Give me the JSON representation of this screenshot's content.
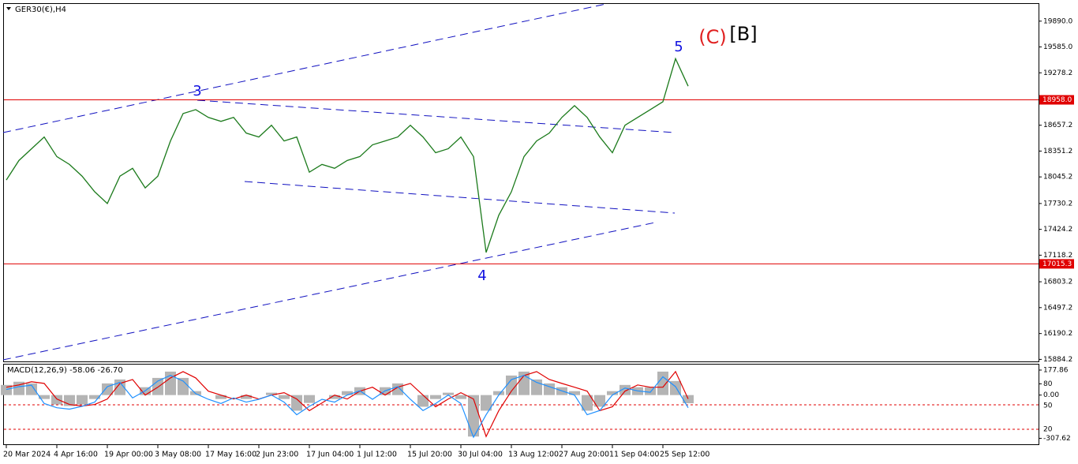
{
  "chart_data": [
    {
      "type": "line",
      "title": "GER30(€),H4",
      "categories": [
        "20 Mar 2024",
        null,
        null,
        null,
        "4 Apr 16:00",
        null,
        null,
        null,
        "19 Apr 00:00",
        null,
        null,
        null,
        "3 May 08:00",
        null,
        null,
        null,
        "17 May 16:00",
        null,
        null,
        null,
        "2 Jun 23:00",
        null,
        null,
        null,
        "17 Jun 04:00",
        null,
        null,
        null,
        "1 Jul 12:00",
        null,
        null,
        null,
        "15 Jul 20:00",
        null,
        null,
        null,
        "30 Jul 04:00",
        null,
        null,
        null,
        "13 Aug 12:00",
        null,
        null,
        null,
        "27 Aug 20:00",
        null,
        null,
        null,
        "11 Sep 04:00",
        null,
        null,
        null,
        "25 Sep 12:00",
        null,
        null
      ],
      "series": [
        {
          "color": "#1b7a1b",
          "values": [
            18008,
            18240,
            18379,
            18518,
            18286,
            18193,
            18054,
            17869,
            17730,
            18054,
            18147,
            17915,
            18054,
            18471,
            18796,
            18842,
            18750,
            18703,
            18750,
            18564,
            18518,
            18657,
            18471,
            18518,
            18101,
            18193,
            18147,
            18240,
            18286,
            18425,
            18471,
            18518,
            18657,
            18518,
            18332,
            18379,
            18518,
            18286,
            17150,
            17591,
            17869,
            18286,
            18471,
            18564,
            18750,
            18889,
            18750,
            18518,
            18332,
            18657,
            18750,
            18842,
            18935,
            19445,
            19120
          ]
        }
      ],
      "ylim": [
        15860,
        20103
      ],
      "yticks": [
        {
          "value": 19890,
          "label": "19890.0"
        },
        {
          "value": 19585,
          "label": "19585.0"
        },
        19278.2,
        18657.2,
        18351.2,
        18045.2,
        17730.2,
        17424.2,
        17118.2,
        16803.2,
        16497.2,
        16190.2,
        15884.2
      ],
      "hlines": [
        {
          "value": 18958,
          "label": "18958.0",
          "color": "#e00000"
        },
        {
          "value": 17015.3,
          "label": "17015.3",
          "color": "#e00000"
        }
      ],
      "annotations": [
        {
          "text": "3",
          "color": "#1010e0"
        },
        {
          "text": "4",
          "color": "#1010e0"
        },
        {
          "text": "5",
          "color": "#1010e0"
        },
        {
          "text": "(C)",
          "color": "#e02020"
        },
        {
          "text": "[B]",
          "color": "#000000"
        }
      ]
    },
    {
      "type": "macd",
      "title": "MACD(12,26,9) -58.06 -26.70",
      "series": [
        {
          "type": "bar",
          "color": "#b4b4b4",
          "values": [
            72,
            95,
            83,
            -28,
            -67,
            -78,
            -67,
            -28,
            83,
            111,
            0,
            56,
            122,
            167,
            122,
            28,
            0,
            -28,
            0,
            -28,
            0,
            17,
            -28,
            -111,
            -56,
            0,
            -28,
            28,
            56,
            0,
            56,
            83,
            0,
            -83,
            -28,
            17,
            -28,
            -295,
            -111,
            28,
            139,
            167,
            111,
            83,
            56,
            28,
            -111,
            -83,
            28,
            72,
            56,
            56,
            167,
            100,
            -58
          ]
        },
        {
          "type": "line",
          "color": "#e00000",
          "values": [
            56,
            72,
            95,
            83,
            -28,
            -67,
            -78,
            -67,
            -28,
            83,
            111,
            0,
            56,
            122,
            167,
            122,
            28,
            0,
            -28,
            0,
            -28,
            0,
            17,
            -28,
            -111,
            -56,
            0,
            -28,
            28,
            56,
            0,
            56,
            83,
            0,
            -83,
            -28,
            17,
            -28,
            -295,
            -111,
            28,
            139,
            167,
            111,
            83,
            56,
            28,
            -111,
            -83,
            28,
            72,
            56,
            56,
            167,
            -27
          ]
        },
        {
          "type": "line",
          "color": "#1e90ff",
          "values": [
            40,
            60,
            70,
            -60,
            -90,
            -100,
            -80,
            -50,
            60,
            90,
            -20,
            30,
            100,
            140,
            100,
            10,
            -30,
            -60,
            -20,
            -50,
            -30,
            0,
            -50,
            -140,
            -80,
            -30,
            -50,
            0,
            30,
            -30,
            30,
            60,
            -30,
            -110,
            -60,
            0,
            -60,
            -300,
            -140,
            0,
            110,
            140,
            90,
            60,
            30,
            0,
            -140,
            -110,
            0,
            50,
            30,
            20,
            130,
            60,
            -90
          ]
        }
      ],
      "ylim": [
        -350,
        217
      ],
      "yticks": [
        177.86,
        80,
        {
          "value": 0,
          "label": "0.00"
        },
        -307.62
      ],
      "level_labels": [
        "50",
        "20"
      ]
    }
  ]
}
